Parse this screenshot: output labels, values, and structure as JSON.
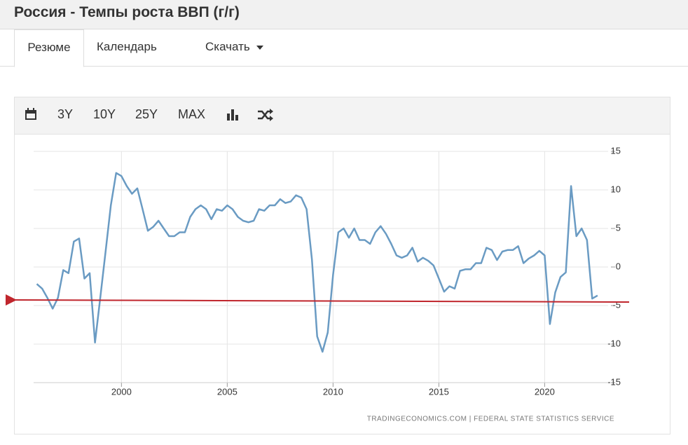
{
  "header": {
    "title": "Россия - Темпы роста ВВП (г/г)"
  },
  "tabs": [
    "Резюме",
    "Календарь",
    "Скачать"
  ],
  "toolbar": [
    "3Y",
    "10Y",
    "25Y",
    "MAX"
  ],
  "chart_data": {
    "type": "line",
    "color": "#6a9bc3",
    "grid": true,
    "x": [
      1996.0,
      1996.25,
      1996.5,
      1996.75,
      1997.0,
      1997.25,
      1997.5,
      1997.75,
      1998.0,
      1998.25,
      1998.5,
      1998.75,
      1999.0,
      1999.25,
      1999.5,
      1999.75,
      2000.0,
      2000.25,
      2000.5,
      2000.75,
      2001.0,
      2001.25,
      2001.5,
      2001.75,
      2002.0,
      2002.25,
      2002.5,
      2002.75,
      2003.0,
      2003.25,
      2003.5,
      2003.75,
      2004.0,
      2004.25,
      2004.5,
      2004.75,
      2005.0,
      2005.25,
      2005.5,
      2005.75,
      2006.0,
      2006.25,
      2006.5,
      2006.75,
      2007.0,
      2007.25,
      2007.5,
      2007.75,
      2008.0,
      2008.25,
      2008.5,
      2008.75,
      2009.0,
      2009.25,
      2009.5,
      2009.75,
      2010.0,
      2010.25,
      2010.5,
      2010.75,
      2011.0,
      2011.25,
      2011.5,
      2011.75,
      2012.0,
      2012.25,
      2012.5,
      2012.75,
      2013.0,
      2013.25,
      2013.5,
      2013.75,
      2014.0,
      2014.25,
      2014.5,
      2014.75,
      2015.0,
      2015.25,
      2015.5,
      2015.75,
      2016.0,
      2016.25,
      2016.5,
      2016.75,
      2017.0,
      2017.25,
      2017.5,
      2017.75,
      2018.0,
      2018.25,
      2018.5,
      2018.75,
      2019.0,
      2019.25,
      2019.5,
      2019.75,
      2020.0,
      2020.25,
      2020.5,
      2020.75,
      2021.0,
      2021.25,
      2021.5,
      2021.75,
      2022.0,
      2022.25,
      2022.5
    ],
    "values": [
      -2.2,
      -2.8,
      -4.0,
      -5.4,
      -4.0,
      -0.4,
      -0.8,
      3.3,
      3.7,
      -1.5,
      -0.8,
      -9.8,
      -4.0,
      2.0,
      8.0,
      12.2,
      11.8,
      10.5,
      9.5,
      10.2,
      7.5,
      4.7,
      5.2,
      6.0,
      5.0,
      4.0,
      4.0,
      4.5,
      4.5,
      6.5,
      7.5,
      8.0,
      7.5,
      6.2,
      7.5,
      7.3,
      8.0,
      7.5,
      6.5,
      6.0,
      5.8,
      6.0,
      7.5,
      7.3,
      8.0,
      8.0,
      8.8,
      8.3,
      8.5,
      9.3,
      9.0,
      7.5,
      1.0,
      -9.0,
      -11.0,
      -8.5,
      -1.0,
      4.5,
      5.0,
      3.8,
      5.0,
      3.5,
      3.5,
      3.0,
      4.5,
      5.3,
      4.3,
      3.0,
      1.5,
      1.2,
      1.5,
      2.5,
      0.7,
      1.2,
      0.8,
      0.2,
      -1.5,
      -3.2,
      -2.5,
      -2.8,
      -0.5,
      -0.3,
      -0.3,
      0.5,
      0.5,
      2.5,
      2.2,
      0.9,
      2.0,
      2.2,
      2.2,
      2.7,
      0.5,
      1.1,
      1.5,
      2.1,
      1.5,
      -7.4,
      -3.3,
      -1.3,
      -0.7,
      10.5,
      4.0,
      5.0,
      3.5,
      -4.1,
      -3.7
    ],
    "xlim": [
      1995.85,
      2023.0
    ],
    "xticks": [
      2000,
      2005,
      2010,
      2015,
      2020
    ],
    "ylim": [
      -15,
      15
    ],
    "yticks": [
      -15,
      -10,
      -5,
      0,
      5,
      10,
      15
    ],
    "source": "TRADINGECONOMICS.COM | FEDERAL STATE STATISTICS SERVICE"
  }
}
